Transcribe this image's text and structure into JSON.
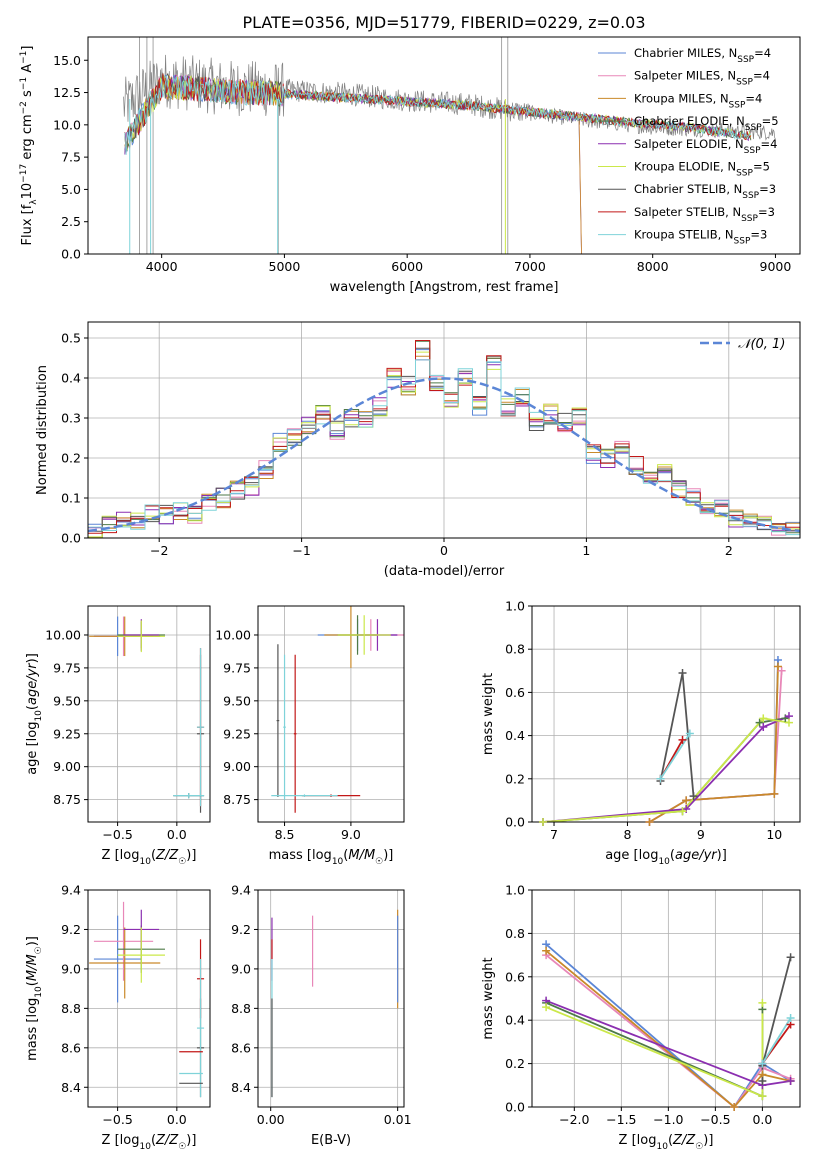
{
  "figure": {
    "title": "PLATE=0356, MJD=51779, FIBERID=0229, z=0.03"
  },
  "colors": {
    "Chabrier MILES": "#5b86d6",
    "Salpeter MILES": "#e887b8",
    "Kroupa MILES": "#c9892a",
    "Chabrier ELODIE": "#4e7a47",
    "Salpeter ELODIE": "#8b2fb0",
    "Kroupa ELODIE": "#cbe84a",
    "Chabrier STELIB": "#555555",
    "Salpeter STELIB": "#c21818",
    "Kroupa STELIB": "#7fd3d9",
    "data": "#808080",
    "normal": "#5b86d6",
    "grid": "#b0b0b0"
  },
  "chart_data": [
    {
      "id": "spectrum",
      "type": "line",
      "title": "PLATE=0356, MJD=51779, FIBERID=0229, z=0.03",
      "xlabel": "wavelength [Angstrom, rest frame]",
      "ylabel": "Flux [f_λ 10^-17 erg cm^-2 s^-1 A^-1]",
      "xlim": [
        3400,
        9200
      ],
      "ylim": [
        0,
        16.8
      ],
      "xticks": [
        4000,
        5000,
        6000,
        7000,
        8000,
        9000
      ],
      "yticks": [
        0.0,
        2.5,
        5.0,
        7.5,
        10.0,
        12.5,
        15.0
      ],
      "grid": false,
      "legend_position": "top-right",
      "legend": [
        {
          "model": "Chabrier MILES",
          "n_ssp": 4
        },
        {
          "model": "Salpeter MILES",
          "n_ssp": 4
        },
        {
          "model": "Kroupa MILES",
          "n_ssp": 4
        },
        {
          "model": "Chabrier ELODIE",
          "n_ssp": 5
        },
        {
          "model": "Salpeter ELODIE",
          "n_ssp": 4
        },
        {
          "model": "Kroupa ELODIE",
          "n_ssp": 5
        },
        {
          "model": "Chabrier STELIB",
          "n_ssp": 3
        },
        {
          "model": "Salpeter STELIB",
          "n_ssp": 3
        },
        {
          "model": "Kroupa STELIB",
          "n_ssp": 3
        }
      ],
      "data_trend": {
        "x": [
          3700,
          4000,
          4500,
          5000,
          5500,
          6000,
          6500,
          7000,
          7500,
          8000,
          8500,
          9000
        ],
        "y": [
          11.5,
          13.5,
          12.9,
          12.7,
          12.4,
          11.9,
          11.6,
          10.9,
          10.3,
          9.8,
          9.6,
          9.4
        ]
      },
      "model_trend": {
        "x": [
          3700,
          4000,
          4500,
          5000,
          5500,
          6000,
          6500,
          7000,
          7400,
          7800,
          8300,
          8800
        ],
        "y": [
          8.5,
          13.0,
          12.6,
          12.4,
          12.1,
          11.8,
          11.5,
          11.0,
          10.6,
          10.2,
          9.8,
          9.1
        ]
      }
    },
    {
      "id": "residuals",
      "type": "line",
      "xlabel": "(data-model)/error",
      "ylabel": "Normed distribution",
      "xlim": [
        -2.5,
        2.5
      ],
      "ylim": [
        0,
        0.54
      ],
      "xticks": [
        -2,
        -1,
        0,
        1,
        2
      ],
      "yticks": [
        0.0,
        0.1,
        0.2,
        0.3,
        0.4,
        0.5
      ],
      "grid": true,
      "legend_position": "top-right",
      "legend_label": "𝒩(0, 1)",
      "bin_centers": [
        -2.45,
        -2.35,
        -2.25,
        -2.15,
        -2.05,
        -1.95,
        -1.85,
        -1.75,
        -1.65,
        -1.55,
        -1.45,
        -1.35,
        -1.25,
        -1.15,
        -1.05,
        -0.95,
        -0.85,
        -0.75,
        -0.65,
        -0.55,
        -0.45,
        -0.35,
        -0.25,
        -0.15,
        -0.05,
        0.05,
        0.15,
        0.25,
        0.35,
        0.45,
        0.55,
        0.65,
        0.75,
        0.85,
        0.95,
        1.05,
        1.15,
        1.25,
        1.35,
        1.45,
        1.55,
        1.65,
        1.75,
        1.85,
        1.95,
        2.05,
        2.15,
        2.25,
        2.35,
        2.45
      ],
      "histogram": [
        0.02,
        0.03,
        0.05,
        0.04,
        0.06,
        0.06,
        0.07,
        0.06,
        0.09,
        0.1,
        0.12,
        0.13,
        0.17,
        0.24,
        0.25,
        0.28,
        0.31,
        0.27,
        0.3,
        0.3,
        0.33,
        0.4,
        0.38,
        0.47,
        0.39,
        0.35,
        0.4,
        0.33,
        0.44,
        0.33,
        0.35,
        0.29,
        0.31,
        0.29,
        0.3,
        0.21,
        0.2,
        0.22,
        0.18,
        0.15,
        0.16,
        0.12,
        0.1,
        0.07,
        0.07,
        0.05,
        0.04,
        0.04,
        0.03,
        0.03
      ]
    },
    {
      "id": "age-vs-metallicity",
      "type": "scatter",
      "xlabel": "Z [log10(Z/Z☉)]",
      "ylabel": "age [log10(age/yr)]",
      "xlim": [
        -0.75,
        0.28
      ],
      "ylim": [
        8.58,
        10.22
      ],
      "xticks": [
        -0.5,
        0.0
      ],
      "yticks": [
        8.75,
        9.0,
        9.25,
        9.5,
        9.75,
        10.0
      ],
      "grid": true,
      "points": [
        {
          "model": "Chabrier MILES",
          "x": -0.5,
          "y": 9.99,
          "xerr": 0.2,
          "yerr": 0.15
        },
        {
          "model": "Salpeter MILES",
          "x": -0.45,
          "y": 9.99,
          "xerr": 0.25,
          "yerr": 0.15
        },
        {
          "model": "Kroupa MILES",
          "x": -0.44,
          "y": 9.99,
          "xerr": 0.3,
          "yerr": 0.15
        },
        {
          "model": "Chabrier ELODIE",
          "x": -0.3,
          "y": 10.0,
          "xerr": 0.2,
          "yerr": 0.1
        },
        {
          "model": "Salpeter ELODIE",
          "x": -0.3,
          "y": 10.0,
          "xerr": 0.15,
          "yerr": 0.12
        },
        {
          "model": "Kroupa ELODIE",
          "x": -0.3,
          "y": 9.99,
          "xerr": 0.2,
          "yerr": 0.12
        },
        {
          "model": "Chabrier STELIB",
          "x": 0.2,
          "y": 9.25,
          "xerr": 0.03,
          "yerr": 0.6
        },
        {
          "model": "Salpeter STELIB",
          "x": 0.2,
          "y": 9.3,
          "xerr": 0.03,
          "yerr": 0.6
        },
        {
          "model": "Kroupa STELIB",
          "x": 0.2,
          "y": 9.3,
          "xerr": 0.03,
          "yerr": 0.6
        },
        {
          "model": "Chabrier STELIB",
          "x": 0.1,
          "y": 8.78,
          "xerr": 0.13,
          "yerr": 0.02
        },
        {
          "model": "Kroupa STELIB",
          "x": 0.1,
          "y": 8.78,
          "xerr": 0.13,
          "yerr": 0.02
        }
      ]
    },
    {
      "id": "age-vs-mass",
      "type": "scatter",
      "xlabel": "mass [log10(M/M☉)]",
      "ylabel": "",
      "xlim": [
        8.3,
        9.4
      ],
      "ylim": [
        8.58,
        10.22
      ],
      "xticks": [
        8.5,
        9.0
      ],
      "yticks": [
        8.75,
        9.0,
        9.25,
        9.5,
        9.75,
        10.0
      ],
      "grid": true,
      "points": [
        {
          "model": "Chabrier MILES",
          "x": 9.05,
          "y": 10.0,
          "xerr": 0.3,
          "yerr": 0.12
        },
        {
          "model": "Salpeter MILES",
          "x": 9.15,
          "y": 10.0,
          "xerr": 0.25,
          "yerr": 0.12
        },
        {
          "model": "Kroupa MILES",
          "x": 9.0,
          "y": 10.0,
          "xerr": 0.2,
          "yerr": 0.25
        },
        {
          "model": "Chabrier ELODIE",
          "x": 9.05,
          "y": 10.0,
          "xerr": 0.15,
          "yerr": 0.15
        },
        {
          "model": "Salpeter ELODIE",
          "x": 9.2,
          "y": 10.0,
          "xerr": 0.15,
          "yerr": 0.12
        },
        {
          "model": "Kroupa ELODIE",
          "x": 9.1,
          "y": 10.0,
          "xerr": 0.2,
          "yerr": 0.15
        },
        {
          "model": "Chabrier STELIB",
          "x": 8.45,
          "y": 9.35,
          "xerr": 0.01,
          "yerr": 0.58
        },
        {
          "model": "Salpeter STELIB",
          "x": 8.58,
          "y": 9.25,
          "xerr": 0.01,
          "yerr": 0.6
        },
        {
          "model": "Kroupa STELIB",
          "x": 8.5,
          "y": 9.3,
          "xerr": 0.01,
          "yerr": 0.55
        },
        {
          "model": "Salpeter STELIB",
          "x": 8.85,
          "y": 8.78,
          "xerr": 0.22,
          "yerr": 0.01
        },
        {
          "model": "Kroupa STELIB",
          "x": 8.65,
          "y": 8.78,
          "xerr": 0.25,
          "yerr": 0.01
        }
      ]
    },
    {
      "id": "weight-vs-age",
      "type": "line",
      "xlabel": "age [log10(age/yr)]",
      "ylabel": "mass weight",
      "xlim": [
        6.7,
        10.35
      ],
      "ylim": [
        0,
        1.0
      ],
      "xticks": [
        7,
        8,
        9,
        10
      ],
      "yticks": [
        0.0,
        0.2,
        0.4,
        0.6,
        0.8,
        1.0
      ],
      "grid": true,
      "series": [
        {
          "model": "Chabrier MILES",
          "x": [
            8.3,
            8.8,
            10.0,
            10.05
          ],
          "y": [
            0.0,
            0.1,
            0.13,
            0.75
          ]
        },
        {
          "model": "Salpeter MILES",
          "x": [
            8.3,
            8.8,
            10.0,
            10.1
          ],
          "y": [
            0.0,
            0.1,
            0.13,
            0.7
          ]
        },
        {
          "model": "Kroupa MILES",
          "x": [
            8.3,
            8.8,
            10.0,
            10.05
          ],
          "y": [
            0.0,
            0.1,
            0.13,
            0.72
          ]
        },
        {
          "model": "Chabrier ELODIE",
          "x": [
            6.85,
            8.75,
            9.8,
            10.15
          ],
          "y": [
            0.0,
            0.05,
            0.46,
            0.48
          ]
        },
        {
          "model": "Salpeter ELODIE",
          "x": [
            6.85,
            8.8,
            9.85,
            10.2
          ],
          "y": [
            0.0,
            0.06,
            0.44,
            0.49
          ]
        },
        {
          "model": "Kroupa ELODIE",
          "x": [
            6.85,
            8.75,
            9.85,
            10.2
          ],
          "y": [
            0.0,
            0.05,
            0.48,
            0.46
          ]
        },
        {
          "model": "Chabrier STELIB",
          "x": [
            8.45,
            8.75,
            8.9
          ],
          "y": [
            0.19,
            0.69,
            0.12
          ]
        },
        {
          "model": "Salpeter STELIB",
          "x": [
            8.45,
            8.75
          ],
          "y": [
            0.2,
            0.38
          ]
        },
        {
          "model": "Kroupa STELIB",
          "x": [
            8.45,
            8.85
          ],
          "y": [
            0.2,
            0.41
          ]
        }
      ]
    },
    {
      "id": "mass-vs-metallicity",
      "type": "scatter",
      "xlabel": "Z [log10(Z/Z☉)]",
      "ylabel": "mass [log10(M/M☉)]",
      "xlim": [
        -0.75,
        0.28
      ],
      "ylim": [
        8.3,
        9.4
      ],
      "xticks": [
        -0.5,
        0.0
      ],
      "yticks": [
        8.4,
        8.6,
        8.8,
        9.0,
        9.2,
        9.4
      ],
      "grid": true,
      "points": [
        {
          "model": "Chabrier MILES",
          "x": -0.5,
          "y": 9.05,
          "xerr": 0.2,
          "yerr": 0.22
        },
        {
          "model": "Salpeter MILES",
          "x": -0.45,
          "y": 9.14,
          "xerr": 0.25,
          "yerr": 0.2
        },
        {
          "model": "Kroupa MILES",
          "x": -0.44,
          "y": 9.03,
          "xerr": 0.3,
          "yerr": 0.18
        },
        {
          "model": "Chabrier ELODIE",
          "x": -0.3,
          "y": 9.1,
          "xerr": 0.2,
          "yerr": 0.12
        },
        {
          "model": "Salpeter ELODIE",
          "x": -0.3,
          "y": 9.2,
          "xerr": 0.15,
          "yerr": 0.1
        },
        {
          "model": "Kroupa ELODIE",
          "x": -0.3,
          "y": 9.07,
          "xerr": 0.2,
          "yerr": 0.14
        },
        {
          "model": "Chabrier STELIB",
          "x": 0.2,
          "y": 8.6,
          "xerr": 0.03,
          "yerr": 0.25
        },
        {
          "model": "Salpeter STELIB",
          "x": 0.2,
          "y": 8.95,
          "xerr": 0.03,
          "yerr": 0.2
        },
        {
          "model": "Kroupa STELIB",
          "x": 0.2,
          "y": 8.7,
          "xerr": 0.03,
          "yerr": 0.35
        },
        {
          "model": "Salpeter STELIB",
          "x": 0.12,
          "y": 8.58,
          "xerr": 0.1,
          "yerr": 0.0
        },
        {
          "model": "Chabrier STELIB",
          "x": 0.12,
          "y": 8.42,
          "xerr": 0.1,
          "yerr": 0.0
        },
        {
          "model": "Kroupa STELIB",
          "x": 0.12,
          "y": 8.47,
          "xerr": 0.1,
          "yerr": 0.0
        }
      ]
    },
    {
      "id": "mass-vs-extinction",
      "type": "scatter",
      "xlabel": "E(B-V)",
      "ylabel": "",
      "xlim": [
        -0.001,
        0.0105
      ],
      "ylim": [
        8.3,
        9.4
      ],
      "xticks": [
        0.0,
        0.01
      ],
      "tick_labels": [
        "0.00",
        "0.01"
      ],
      "yticks": [
        8.4,
        8.6,
        8.8,
        9.0,
        9.2,
        9.4
      ],
      "grid": true,
      "points": [
        {
          "model": "Salpeter MILES",
          "x": 0.0033,
          "y": 9.09,
          "xerr": 0.0,
          "yerr": 0.18
        },
        {
          "model": "Kroupa MILES",
          "x": 0.01,
          "y": 9.05,
          "xerr": 0.0,
          "yerr": 0.25
        },
        {
          "model": "Salpeter ELODIE",
          "x": 0.0001,
          "y": 9.1,
          "xerr": 0.0,
          "yerr": 0.16
        },
        {
          "model": "Salpeter STELIB",
          "x": 0.0001,
          "y": 9.1,
          "xerr": 0.0,
          "yerr": 0.05
        },
        {
          "model": "Kroupa STELIB",
          "x": 0.0001,
          "y": 8.7,
          "xerr": 0.0,
          "yerr": 0.35
        },
        {
          "model": "Chabrier STELIB",
          "x": 0.0001,
          "y": 8.6,
          "xerr": 0.0,
          "yerr": 0.25
        },
        {
          "model": "Chabrier MILES",
          "x": 0.01,
          "y": 9.05,
          "xerr": 0.0,
          "yerr": 0.22
        }
      ]
    },
    {
      "id": "weight-vs-metallicity",
      "type": "line",
      "xlabel": "Z [log10(Z/Z☉)]",
      "ylabel": "mass weight",
      "xlim": [
        -2.45,
        0.4
      ],
      "ylim": [
        0,
        1.0
      ],
      "xticks": [
        -2.0,
        -1.5,
        -1.0,
        -0.5,
        0.0
      ],
      "yticks": [
        0.0,
        0.2,
        0.4,
        0.6,
        0.8,
        1.0
      ],
      "grid": true,
      "series": [
        {
          "model": "Chabrier MILES",
          "x": [
            -2.3,
            -0.3,
            0.0,
            0.3
          ],
          "y": [
            0.75,
            0.0,
            0.2,
            0.12
          ]
        },
        {
          "model": "Salpeter MILES",
          "x": [
            -2.3,
            -0.3,
            0.0,
            0.3
          ],
          "y": [
            0.7,
            0.0,
            0.18,
            0.13
          ]
        },
        {
          "model": "Kroupa MILES",
          "x": [
            -2.3,
            -0.3,
            0.0,
            0.3
          ],
          "y": [
            0.72,
            0.0,
            0.15,
            0.12
          ]
        },
        {
          "model": "Chabrier ELODIE",
          "x": [
            -2.3,
            0.0,
            0.0
          ],
          "y": [
            0.48,
            0.05,
            0.45
          ]
        },
        {
          "model": "Salpeter ELODIE",
          "x": [
            -2.3,
            0.0,
            0.3
          ],
          "y": [
            0.49,
            0.1,
            0.12
          ]
        },
        {
          "model": "Kroupa ELODIE",
          "x": [
            -2.3,
            0.0,
            0.0
          ],
          "y": [
            0.46,
            0.05,
            0.48
          ]
        },
        {
          "model": "Chabrier STELIB",
          "x": [
            0.0,
            0.0,
            0.3
          ],
          "y": [
            0.12,
            0.19,
            0.69
          ]
        },
        {
          "model": "Salpeter STELIB",
          "x": [
            0.0,
            0.3
          ],
          "y": [
            0.2,
            0.38
          ]
        },
        {
          "model": "Kroupa STELIB",
          "x": [
            0.0,
            0.3
          ],
          "y": [
            0.2,
            0.41
          ]
        }
      ]
    }
  ]
}
